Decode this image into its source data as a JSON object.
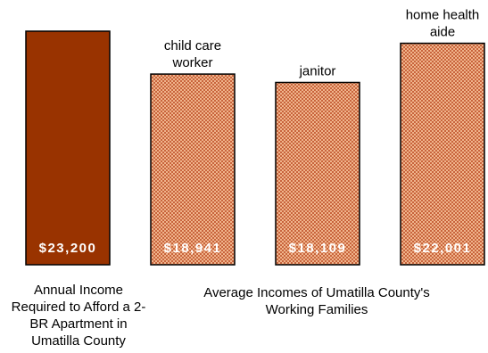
{
  "chart_data": {
    "type": "bar",
    "categories": [
      "Annual Income Required to Afford a 2-BR Apartment in Umatilla County",
      "child care worker",
      "janitor",
      "home health aide"
    ],
    "values": [
      23200,
      18941,
      18109,
      22001
    ],
    "value_labels": [
      "$23,200",
      "$18,941",
      "$18,109",
      "$22,001"
    ],
    "bar_labels": [
      [],
      [
        "child care",
        "worker"
      ],
      [
        "janitor"
      ],
      [
        "home health",
        "aide"
      ]
    ],
    "colors": [
      "#993300",
      "#e9a67e",
      "#e9a67e",
      "#e9a67e"
    ],
    "patterned": [
      false,
      true,
      true,
      true
    ],
    "grid": false,
    "ylim": [
      0,
      23200
    ]
  },
  "captions": {
    "left": "Annual Income Required to Afford a 2-BR Apartment in Umatilla County",
    "right": "Average Incomes of Umatilla County's Working Families"
  }
}
